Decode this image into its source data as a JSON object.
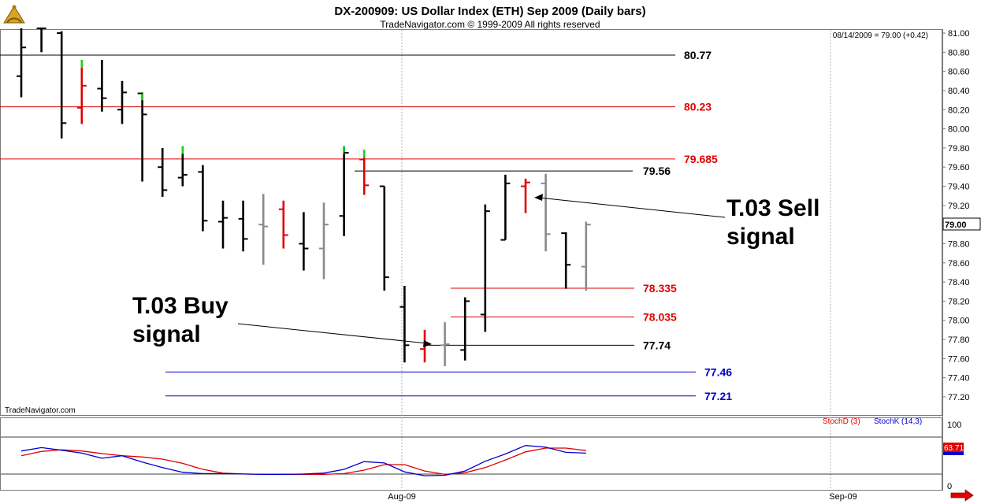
{
  "header": {
    "title": "DX-200909:  US Dollar Index (ETH) Sep 2009  (Daily bars)",
    "copyright": "TradeNavigator.com © 1999-2009 All rights reserved",
    "info": "08/14/2009 = 79.00 (+0.42)",
    "watermark": "TradeNavigator.com"
  },
  "colors": {
    "up": "#000000",
    "down": "#e00000",
    "green": "#1fcf1f",
    "gray": "#8a8a8a",
    "stochD": "#e00000",
    "stochK": "#0000cc",
    "blueLevel": "#0000cc"
  },
  "icons": {
    "logo": "sextant-logo-icon",
    "scroll": "red-arrow-icon"
  },
  "annotations": {
    "sell_line1": "T.03 Sell",
    "sell_line2": "signal",
    "buy_line1": "T.03 Buy",
    "buy_line2": "signal"
  },
  "chart_data": [
    {
      "type": "ohlc",
      "title": "DX-200909:  US Dollar Index (ETH) Sep 2009  (Daily bars)",
      "ylim": [
        77.05,
        81.05
      ],
      "y_ticks": [
        81.0,
        80.8,
        80.6,
        80.4,
        80.2,
        80.0,
        79.8,
        79.6,
        79.4,
        79.2,
        79.0,
        78.8,
        78.6,
        78.4,
        78.2,
        78.0,
        77.8,
        77.6,
        77.4,
        77.2
      ],
      "last_price": "79.00",
      "x_ticks": [
        "Aug-09",
        "Sep-09"
      ],
      "bars": [
        {
          "o": 80.55,
          "h": 81.05,
          "l": 80.33,
          "c": 80.85,
          "col": "up"
        },
        {
          "o": 81.05,
          "h": 81.05,
          "l": 80.8,
          "c": 81.05,
          "col": "up"
        },
        {
          "o": 81.0,
          "h": 81.02,
          "l": 79.9,
          "c": 80.06,
          "col": "up"
        },
        {
          "o": 80.22,
          "h": 80.72,
          "l": 80.05,
          "c": 80.45,
          "col": "down",
          "wick": "green"
        },
        {
          "o": 80.42,
          "h": 80.72,
          "l": 80.18,
          "c": 80.32,
          "col": "up"
        },
        {
          "o": 80.2,
          "h": 80.5,
          "l": 80.05,
          "c": 80.38,
          "col": "up"
        },
        {
          "o": 80.37,
          "h": 80.38,
          "l": 79.45,
          "c": 80.15,
          "col": "up",
          "wick": "green"
        },
        {
          "o": 79.6,
          "h": 79.8,
          "l": 79.29,
          "c": 79.36,
          "col": "up"
        },
        {
          "o": 79.49,
          "h": 79.82,
          "l": 79.4,
          "c": 79.52,
          "col": "up",
          "wick": "green"
        },
        {
          "o": 79.55,
          "h": 79.62,
          "l": 78.93,
          "c": 79.04,
          "col": "up"
        },
        {
          "o": 79.03,
          "h": 79.25,
          "l": 78.75,
          "c": 79.07,
          "col": "up"
        },
        {
          "o": 79.06,
          "h": 79.25,
          "l": 78.72,
          "c": 78.85,
          "col": "up"
        },
        {
          "o": 79.0,
          "h": 79.32,
          "l": 78.58,
          "c": 78.98,
          "col": "gray"
        },
        {
          "o": 79.16,
          "h": 79.25,
          "l": 78.75,
          "c": 78.89,
          "col": "down"
        },
        {
          "o": 78.8,
          "h": 79.13,
          "l": 78.52,
          "c": 78.75,
          "col": "up"
        },
        {
          "o": 78.75,
          "h": 79.23,
          "l": 78.43,
          "c": 79.0,
          "col": "gray"
        },
        {
          "o": 79.09,
          "h": 79.82,
          "l": 78.88,
          "c": 79.75,
          "col": "up",
          "wick": "green"
        },
        {
          "o": 79.68,
          "h": 79.78,
          "l": 79.31,
          "c": 79.41,
          "col": "down",
          "wick": "green"
        },
        {
          "o": 79.4,
          "h": 79.4,
          "l": 78.31,
          "c": 78.45,
          "col": "up"
        },
        {
          "o": 78.14,
          "h": 78.36,
          "l": 77.56,
          "c": 77.74,
          "col": "up"
        },
        {
          "o": 77.7,
          "h": 77.9,
          "l": 77.56,
          "c": 77.75,
          "col": "down"
        },
        {
          "o": 77.74,
          "h": 77.98,
          "l": 77.52,
          "c": 77.75,
          "col": "gray"
        },
        {
          "o": 77.69,
          "h": 78.24,
          "l": 77.58,
          "c": 78.2,
          "col": "up"
        },
        {
          "o": 78.06,
          "h": 79.21,
          "l": 77.88,
          "c": 79.14,
          "col": "up"
        },
        {
          "o": 78.84,
          "h": 79.52,
          "l": 78.84,
          "c": 79.43,
          "col": "up"
        },
        {
          "o": 79.4,
          "h": 79.48,
          "l": 79.12,
          "c": 79.44,
          "col": "down"
        },
        {
          "o": 79.43,
          "h": 79.53,
          "l": 78.72,
          "c": 78.9,
          "col": "gray"
        },
        {
          "o": 78.91,
          "h": 78.92,
          "l": 78.33,
          "c": 78.58,
          "col": "up"
        },
        {
          "o": 78.56,
          "h": 79.03,
          "l": 78.31,
          "c": 79.0,
          "col": "gray"
        }
      ],
      "levels": [
        {
          "label": "80.77",
          "value": 80.77,
          "color": "#000000"
        },
        {
          "label": "80.23",
          "value": 80.23,
          "color": "#e00000"
        },
        {
          "label": "79.685",
          "value": 79.685,
          "color": "#e00000"
        },
        {
          "label": "79.56",
          "value": 79.56,
          "color": "#000000"
        },
        {
          "label": "78.335",
          "value": 78.335,
          "color": "#e00000"
        },
        {
          "label": "78.035",
          "value": 78.035,
          "color": "#e00000"
        },
        {
          "label": "77.74",
          "value": 77.74,
          "color": "#000000"
        },
        {
          "label": "77.46",
          "value": 77.46,
          "color": "#0000cc"
        },
        {
          "label": "77.21",
          "value": 77.21,
          "color": "#0000cc"
        }
      ]
    },
    {
      "type": "line",
      "legend": [
        "StochD (3)",
        "StochK (14,3)"
      ],
      "ylim": [
        0,
        100
      ],
      "y_ticks": [
        "100",
        "0"
      ],
      "last_value": "63.71",
      "series": [
        {
          "name": "StochD (3)",
          "values": [
            58,
            68,
            72,
            69,
            63,
            58,
            55,
            50,
            40,
            26,
            17,
            15,
            14,
            14,
            14,
            14,
            16,
            24,
            37,
            37,
            22,
            14,
            18,
            30,
            48,
            67,
            76,
            76,
            70
          ]
        },
        {
          "name": "StochK (14,3)",
          "values": [
            69,
            77,
            71,
            64,
            52,
            58,
            43,
            30,
            19,
            16,
            16,
            15,
            14,
            14,
            15,
            17,
            26,
            44,
            41,
            20,
            11,
            12,
            22,
            45,
            62,
            82,
            78,
            66,
            64
          ]
        }
      ]
    }
  ]
}
